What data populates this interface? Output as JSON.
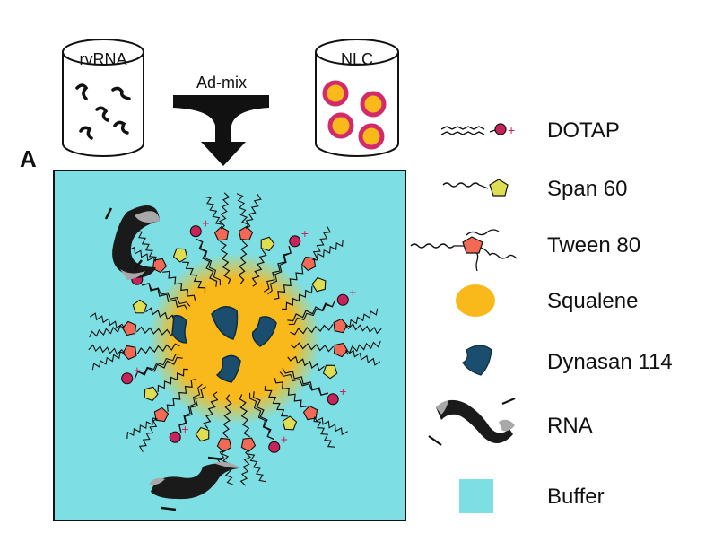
{
  "panel_label": "A",
  "top": {
    "rvrna_label": "rvRNA",
    "admix_label": "Ad-mix",
    "nlc_label": "NLC"
  },
  "legend": {
    "items": [
      {
        "label": "DOTAP",
        "icon": "dotap-icon"
      },
      {
        "label": "Span 60",
        "icon": "span60-icon"
      },
      {
        "label": "Tween 80",
        "icon": "tween80-icon"
      },
      {
        "label": "Squalene",
        "icon": "squalene-icon"
      },
      {
        "label": "Dynasan 114",
        "icon": "dynasan-icon"
      },
      {
        "label": "RNA",
        "icon": "rna-icon"
      },
      {
        "label": "Buffer",
        "icon": "buffer-icon"
      }
    ]
  },
  "colors": {
    "buffer": "#7ddfe3",
    "squalene": "#f9b91b",
    "nlc_ring": "#d22a6b",
    "dotap_head": "#c8235a",
    "span60": "#dede52",
    "tween80": "#f26a55",
    "dynasan": "#1a4d6e",
    "rna_dark": "#1a1a1a",
    "rna_light": "#a8a8a8"
  }
}
